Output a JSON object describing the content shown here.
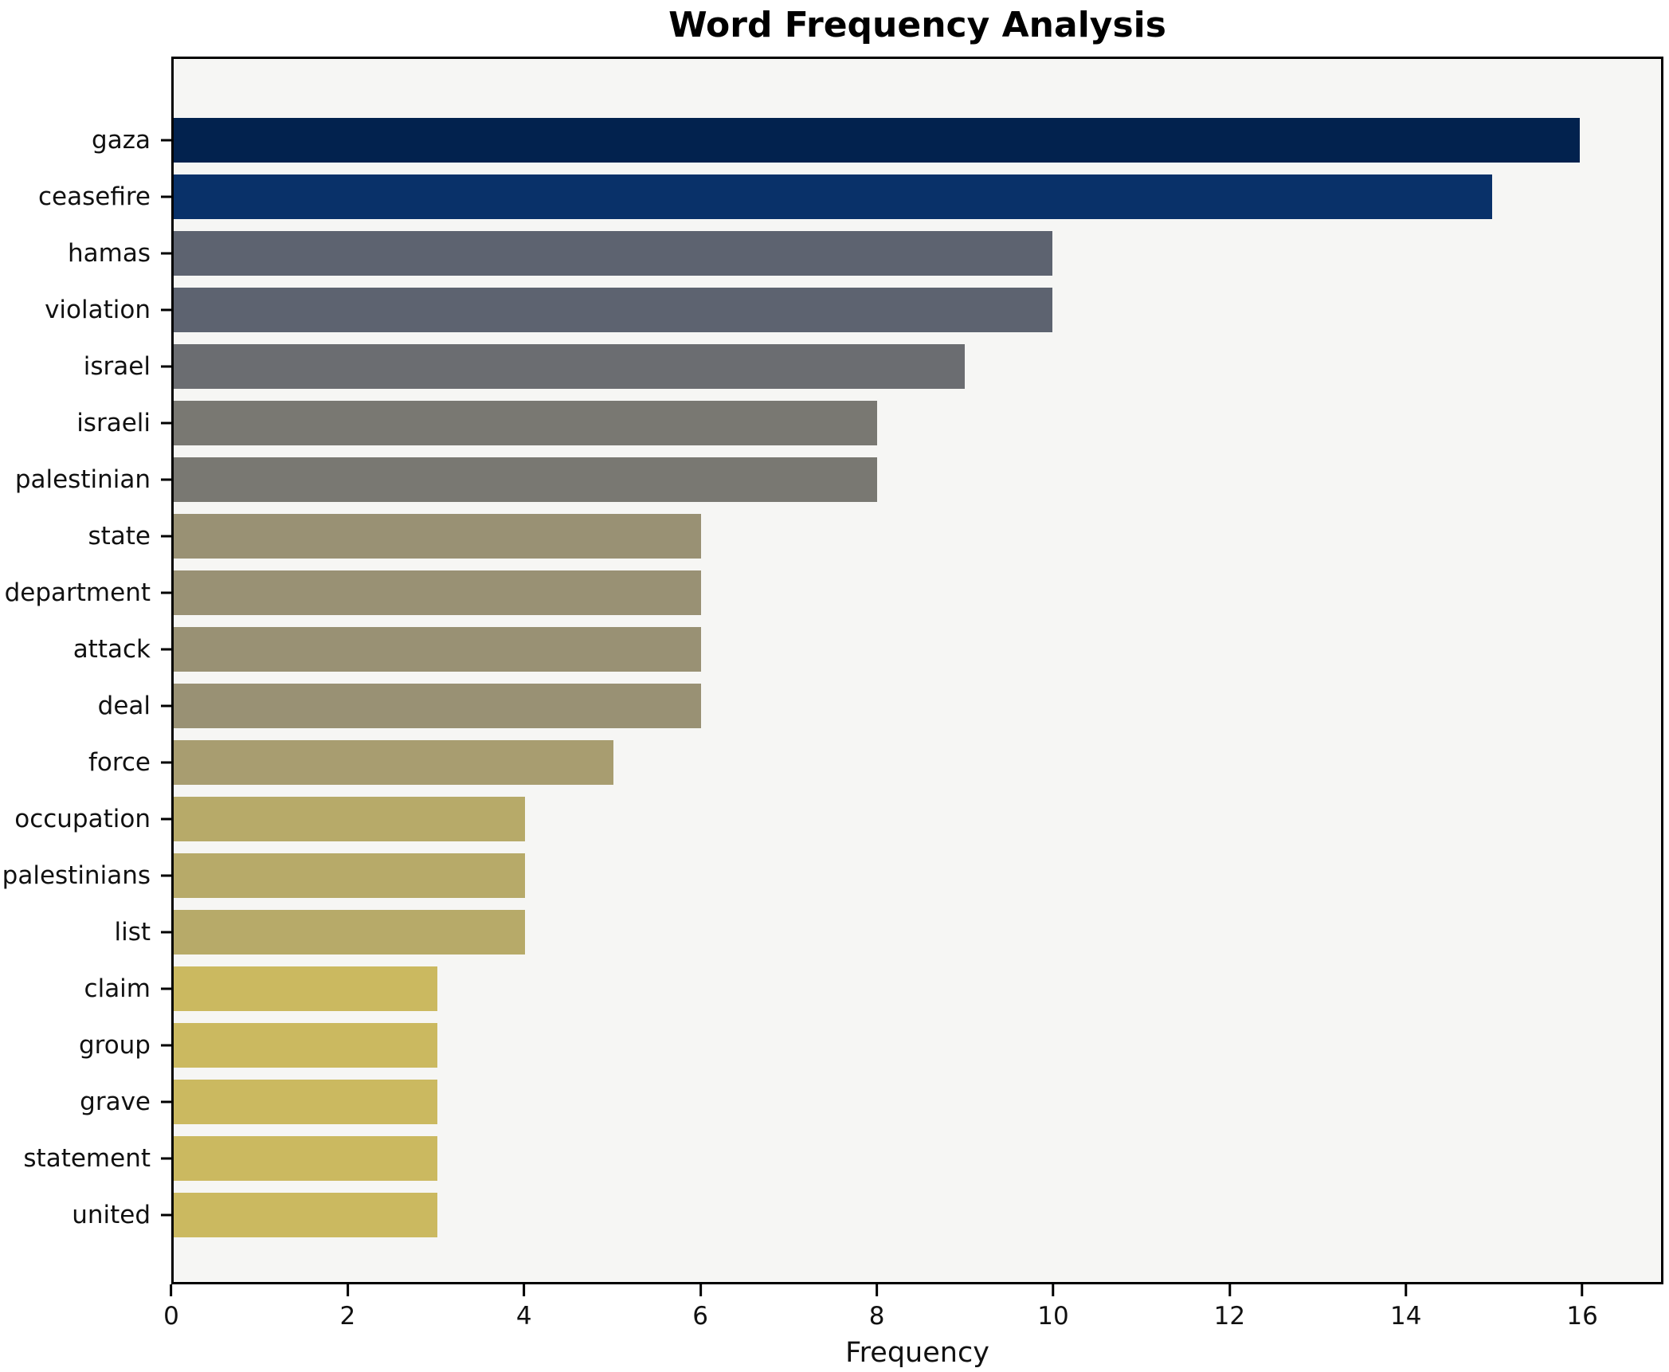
{
  "chart_data": {
    "type": "bar",
    "orientation": "horizontal",
    "title": "Word Frequency Analysis",
    "xlabel": "Frequency",
    "ylabel": "",
    "xlim": [
      0,
      16.92
    ],
    "x_ticks": [
      0,
      2,
      4,
      6,
      8,
      10,
      12,
      14,
      16
    ],
    "grid": false,
    "legend": "none",
    "categories": [
      "gaza",
      "ceasefire",
      "hamas",
      "violation",
      "israel",
      "israeli",
      "palestinian",
      "state",
      "department",
      "attack",
      "deal",
      "force",
      "occupation",
      "palestinians",
      "list",
      "claim",
      "group",
      "grave",
      "statement",
      "united"
    ],
    "values": [
      16,
      15,
      10,
      10,
      9,
      8,
      8,
      6,
      6,
      6,
      6,
      5,
      4,
      4,
      4,
      3,
      3,
      3,
      3,
      3
    ],
    "bar_colors": [
      "#02224e",
      "#093169",
      "#5d6370",
      "#5d6370",
      "#6b6d71",
      "#797872",
      "#797872",
      "#999174",
      "#999174",
      "#999174",
      "#999174",
      "#a89d70",
      "#b7aa69",
      "#b7aa69",
      "#b7aa69",
      "#cbb960",
      "#cbb960",
      "#cbb960",
      "#cbb960",
      "#cbb960"
    ],
    "colors": {
      "figure_background": "#ffffff",
      "plot_background": "#f6f6f4",
      "axis": "#000000",
      "text": "#111111"
    }
  }
}
